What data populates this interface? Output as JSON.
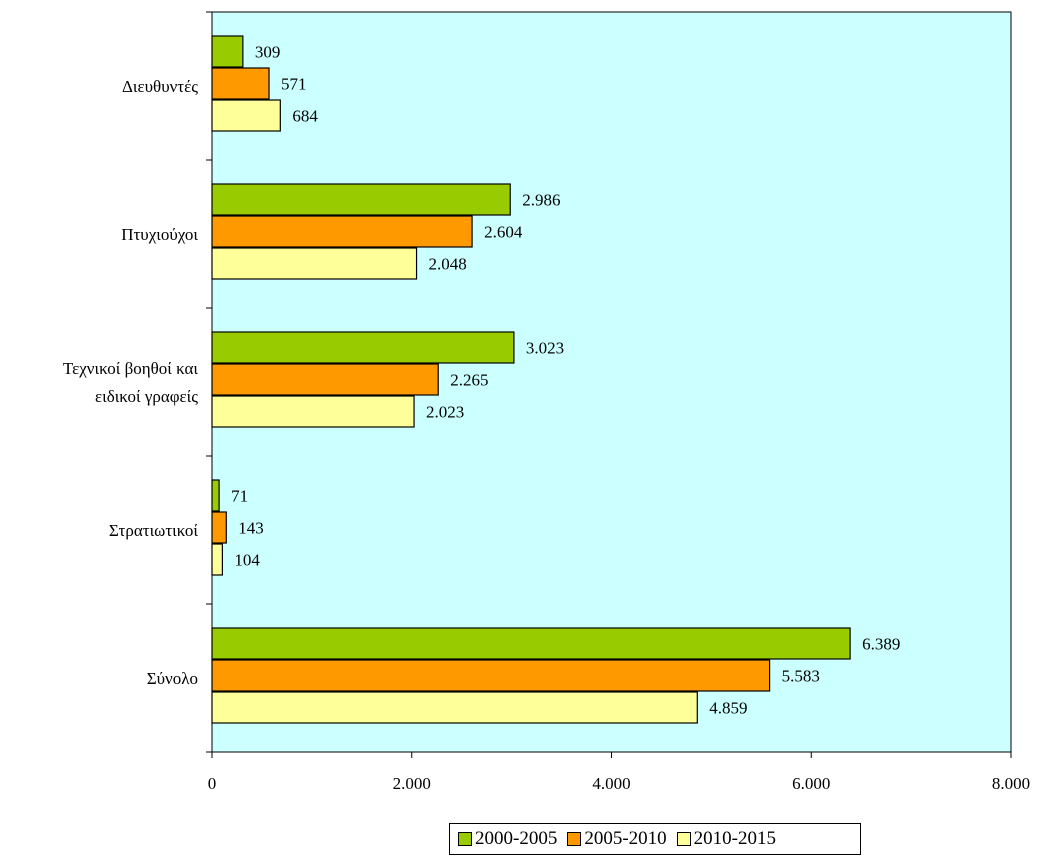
{
  "chart_data": {
    "type": "bar",
    "orientation": "horizontal",
    "categories": [
      "Διευθυντές",
      "Πτυχιούχοι",
      "Τεχνικοί βοηθοί και ειδικοί γραφείς",
      "Στρατιωτικοί",
      "Σύνολο"
    ],
    "category_lines": [
      [
        "Διευθυντές"
      ],
      [
        "Πτυχιούχοι"
      ],
      [
        "Τεχνικοί βοηθοί και",
        "ειδικοί γραφείς"
      ],
      [
        "Στρατιωτικοί"
      ],
      [
        "Σύνολο"
      ]
    ],
    "series": [
      {
        "name": "2000-2005",
        "color": "#99cc00",
        "values": [
          309,
          2986,
          3023,
          71,
          6389
        ],
        "labels": [
          "309",
          "2.986",
          "3.023",
          "71",
          "6.389"
        ]
      },
      {
        "name": "2005-2010",
        "color": "#ff9900",
        "values": [
          571,
          2604,
          2265,
          143,
          5583
        ],
        "labels": [
          "571",
          "2.604",
          "2.265",
          "143",
          "5.583"
        ]
      },
      {
        "name": "2010-2015",
        "color": "#ffff99",
        "values": [
          684,
          2048,
          2023,
          104,
          4859
        ],
        "labels": [
          "684",
          "2.048",
          "2.023",
          "104",
          "4.859"
        ]
      }
    ],
    "xlim": [
      0,
      8000
    ],
    "xticks": [
      0,
      2000,
      4000,
      6000,
      8000
    ],
    "xtick_labels": [
      "0",
      "2.000",
      "4.000",
      "6.000",
      "8.000"
    ],
    "plot_background": "#ccffff",
    "grid": false,
    "legend_position": "bottom",
    "title": "",
    "xlabel": "",
    "ylabel": ""
  }
}
